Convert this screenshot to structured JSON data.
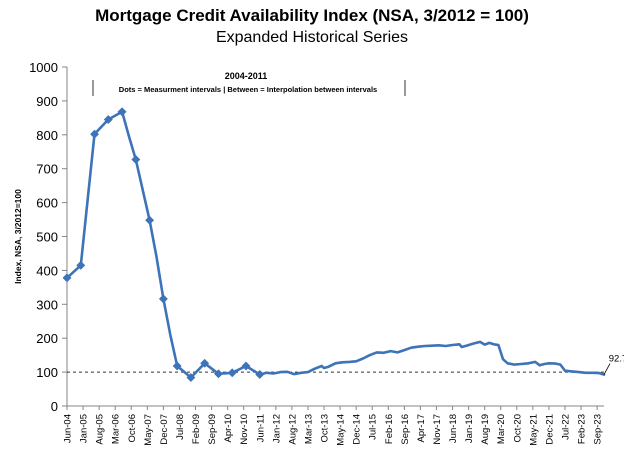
{
  "chart_data": {
    "type": "line",
    "title": "Mortgage Credit Availability Index (NSA, 3/2012 = 100)",
    "subtitle": "Expanded Historical Series",
    "ylabel": "Index, NSA, 3/2012=100",
    "xlabel": "",
    "ylim": [
      0,
      1000
    ],
    "yticks": [
      0,
      100,
      200,
      300,
      400,
      500,
      600,
      700,
      800,
      900,
      1000
    ],
    "x_start": "Jun-04",
    "x_end": "Dec-23",
    "x_tick_labels": [
      "Jun-04",
      "Jan-05",
      "Aug-05",
      "Mar-06",
      "Oct-06",
      "May-07",
      "Dec-07",
      "Jul-08",
      "Feb-09",
      "Sep-09",
      "Apr-10",
      "Nov-10",
      "Jun-11",
      "Jan-12",
      "Aug-12",
      "Mar-13",
      "Oct-13",
      "May-14",
      "Dec-14",
      "Jul-15",
      "Feb-16",
      "Sep-16",
      "Apr-17",
      "Nov-17",
      "Jun-18",
      "Jan-19",
      "Aug-19",
      "Mar-20",
      "Oct-20",
      "May-21",
      "Dec-21",
      "Jul-22",
      "Feb-23",
      "Sep-23"
    ],
    "annotation_period": "2004-2011",
    "annotation_note": "Dots = Measurment intervals  |  Between = Interpolation between intervals",
    "reference_line": 100,
    "last_value_label": "92.7",
    "grid": false,
    "series": [
      {
        "color": "#3d73b8",
        "marker_points": [
          {
            "x": "Jun-04",
            "y": 378
          },
          {
            "x": "Dec-04",
            "y": 415
          },
          {
            "x": "Jun-05",
            "y": 802
          },
          {
            "x": "Dec-05",
            "y": 845
          },
          {
            "x": "Jun-06",
            "y": 868
          },
          {
            "x": "Dec-06",
            "y": 727
          },
          {
            "x": "Jun-07",
            "y": 548
          },
          {
            "x": "Dec-07",
            "y": 316
          },
          {
            "x": "Jun-08",
            "y": 118
          },
          {
            "x": "Dec-08",
            "y": 84
          },
          {
            "x": "Jun-09",
            "y": 126
          },
          {
            "x": "Dec-09",
            "y": 95
          },
          {
            "x": "Jun-10",
            "y": 98
          },
          {
            "x": "Dec-10",
            "y": 118
          },
          {
            "x": "Jun-11",
            "y": 93
          }
        ],
        "points": [
          {
            "x": "Jun-04",
            "y": 378
          },
          {
            "x": "Dec-04",
            "y": 415
          },
          {
            "x": "Mar-05",
            "y": 610
          },
          {
            "x": "Jun-05",
            "y": 802
          },
          {
            "x": "Dec-05",
            "y": 845
          },
          {
            "x": "Jun-06",
            "y": 868
          },
          {
            "x": "Sep-06",
            "y": 795
          },
          {
            "x": "Dec-06",
            "y": 727
          },
          {
            "x": "Jun-07",
            "y": 548
          },
          {
            "x": "Sep-07",
            "y": 440
          },
          {
            "x": "Dec-07",
            "y": 316
          },
          {
            "x": "Mar-08",
            "y": 210
          },
          {
            "x": "Jun-08",
            "y": 118
          },
          {
            "x": "Dec-08",
            "y": 84
          },
          {
            "x": "Jun-09",
            "y": 126
          },
          {
            "x": "Dec-09",
            "y": 95
          },
          {
            "x": "Jun-10",
            "y": 98
          },
          {
            "x": "Dec-10",
            "y": 118
          },
          {
            "x": "Jun-11",
            "y": 93
          },
          {
            "x": "Sep-11",
            "y": 98
          },
          {
            "x": "Dec-11",
            "y": 96
          },
          {
            "x": "Mar-12",
            "y": 100
          },
          {
            "x": "Jun-12",
            "y": 101
          },
          {
            "x": "Sep-12",
            "y": 94
          },
          {
            "x": "Dec-12",
            "y": 98
          },
          {
            "x": "Mar-13",
            "y": 100
          },
          {
            "x": "Jun-13",
            "y": 110
          },
          {
            "x": "Sep-13",
            "y": 118
          },
          {
            "x": "Oct-13",
            "y": 112
          },
          {
            "x": "Dec-13",
            "y": 116
          },
          {
            "x": "Mar-14",
            "y": 126
          },
          {
            "x": "Jun-14",
            "y": 129
          },
          {
            "x": "Sep-14",
            "y": 130
          },
          {
            "x": "Dec-14",
            "y": 132
          },
          {
            "x": "Mar-15",
            "y": 140
          },
          {
            "x": "Jun-15",
            "y": 150
          },
          {
            "x": "Sep-15",
            "y": 158
          },
          {
            "x": "Dec-15",
            "y": 157
          },
          {
            "x": "Mar-16",
            "y": 162
          },
          {
            "x": "Jun-16",
            "y": 158
          },
          {
            "x": "Sep-16",
            "y": 165
          },
          {
            "x": "Dec-16",
            "y": 172
          },
          {
            "x": "Mar-17",
            "y": 175
          },
          {
            "x": "Jun-17",
            "y": 177
          },
          {
            "x": "Sep-17",
            "y": 178
          },
          {
            "x": "Dec-17",
            "y": 179
          },
          {
            "x": "Mar-18",
            "y": 177
          },
          {
            "x": "Jun-18",
            "y": 180
          },
          {
            "x": "Sep-18",
            "y": 182
          },
          {
            "x": "Oct-18",
            "y": 174
          },
          {
            "x": "Dec-18",
            "y": 178
          },
          {
            "x": "Mar-19",
            "y": 184
          },
          {
            "x": "Jun-19",
            "y": 189
          },
          {
            "x": "Aug-19",
            "y": 181
          },
          {
            "x": "Oct-19",
            "y": 186
          },
          {
            "x": "Dec-19",
            "y": 182
          },
          {
            "x": "Feb-20",
            "y": 180
          },
          {
            "x": "Apr-20",
            "y": 138
          },
          {
            "x": "Jun-20",
            "y": 126
          },
          {
            "x": "Sep-20",
            "y": 122
          },
          {
            "x": "Dec-20",
            "y": 124
          },
          {
            "x": "Mar-21",
            "y": 126
          },
          {
            "x": "Jun-21",
            "y": 130
          },
          {
            "x": "Aug-21",
            "y": 120
          },
          {
            "x": "Oct-21",
            "y": 124
          },
          {
            "x": "Dec-21",
            "y": 126
          },
          {
            "x": "Mar-22",
            "y": 125
          },
          {
            "x": "May-22",
            "y": 122
          },
          {
            "x": "Jul-22",
            "y": 104
          },
          {
            "x": "Oct-22",
            "y": 102
          },
          {
            "x": "Jan-23",
            "y": 100
          },
          {
            "x": "Apr-23",
            "y": 98
          },
          {
            "x": "Jul-23",
            "y": 98
          },
          {
            "x": "Oct-23",
            "y": 97
          },
          {
            "x": "Dec-23",
            "y": 92.7
          }
        ]
      }
    ]
  }
}
